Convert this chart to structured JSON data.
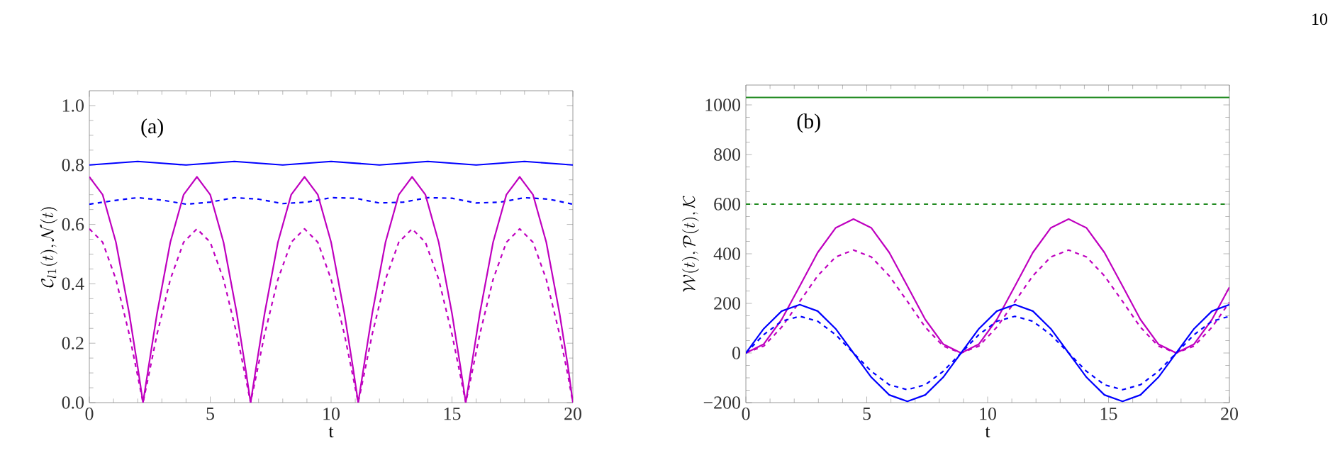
{
  "chart_data": [
    {
      "type": "line",
      "xlabel": "t",
      "ylabel": "\\mathcal{C}_{l1}(t),\\mathcal{N}(t)",
      "annotations": [
        "(a)"
      ],
      "xlim": [
        0,
        20
      ],
      "ylim": [
        0,
        1.05
      ],
      "xticks": [
        0,
        5,
        10,
        15,
        20
      ],
      "yticks": [
        {
          "value": 0,
          "label": "0.0"
        },
        0.2,
        0.4,
        0.6,
        0.8,
        {
          "value": 1,
          "label": "1.0"
        }
      ],
      "marker": "none",
      "grid": false,
      "series": [
        {
          "color": "#0000ff",
          "line_style": "solid",
          "x": [
            0,
            1,
            2,
            3,
            4,
            5,
            6,
            7,
            8,
            9,
            10,
            11,
            12,
            13,
            14,
            15,
            16,
            17,
            18,
            19,
            20
          ],
          "values": [
            0.8,
            0.806,
            0.812,
            0.806,
            0.8,
            0.806,
            0.812,
            0.806,
            0.8,
            0.806,
            0.812,
            0.806,
            0.8,
            0.806,
            0.812,
            0.806,
            0.8,
            0.806,
            0.812,
            0.806,
            0.8
          ]
        },
        {
          "color": "#0000ff",
          "line_style": "dashed",
          "x": [
            0,
            1,
            2,
            3,
            4,
            5,
            6,
            7,
            8,
            9,
            10,
            11,
            12,
            13,
            14,
            15,
            16,
            17,
            18,
            19,
            20
          ],
          "values": [
            0.668,
            0.68,
            0.69,
            0.682,
            0.668,
            0.675,
            0.69,
            0.685,
            0.67,
            0.675,
            0.69,
            0.688,
            0.672,
            0.675,
            0.69,
            0.688,
            0.672,
            0.675,
            0.69,
            0.685,
            0.668
          ]
        },
        {
          "color": "#bf00bf",
          "line_style": "solid",
          "x": [
            0,
            0.55,
            1.1,
            1.65,
            2.0,
            2.22,
            2.45,
            2.8,
            3.35,
            3.9,
            4.45,
            5.0,
            5.55,
            6.1,
            6.45,
            6.67,
            6.9,
            7.25,
            7.8,
            8.35,
            8.9,
            9.45,
            10.0,
            10.55,
            10.9,
            11.12,
            11.35,
            11.7,
            12.25,
            12.8,
            13.35,
            13.9,
            14.45,
            15.0,
            15.35,
            15.57,
            15.8,
            16.15,
            16.7,
            17.25,
            17.8,
            18.35,
            18.9,
            19.45,
            19.8,
            20.0
          ],
          "values": [
            0.76,
            0.7,
            0.54,
            0.3,
            0.12,
            0,
            0.12,
            0.3,
            0.54,
            0.7,
            0.76,
            0.7,
            0.54,
            0.3,
            0.12,
            0,
            0.12,
            0.3,
            0.54,
            0.7,
            0.76,
            0.7,
            0.54,
            0.3,
            0.12,
            0,
            0.12,
            0.3,
            0.54,
            0.7,
            0.76,
            0.7,
            0.54,
            0.3,
            0.12,
            0,
            0.12,
            0.3,
            0.54,
            0.7,
            0.76,
            0.7,
            0.54,
            0.3,
            0.12,
            0
          ]
        },
        {
          "color": "#bf00bf",
          "line_style": "dashed",
          "x": [
            0,
            0.55,
            1.1,
            1.65,
            2.0,
            2.22,
            2.45,
            2.8,
            3.35,
            3.9,
            4.45,
            5.0,
            5.55,
            6.1,
            6.45,
            6.67,
            6.9,
            7.25,
            7.8,
            8.35,
            8.9,
            9.45,
            10.0,
            10.55,
            10.9,
            11.12,
            11.35,
            11.7,
            12.25,
            12.8,
            13.35,
            13.9,
            14.45,
            15.0,
            15.35,
            15.57,
            15.8,
            16.15,
            16.7,
            17.25,
            17.8,
            18.35,
            18.9,
            19.45,
            19.8,
            20.0
          ],
          "values": [
            0.585,
            0.54,
            0.415,
            0.23,
            0.09,
            0,
            0.09,
            0.23,
            0.415,
            0.54,
            0.585,
            0.54,
            0.415,
            0.23,
            0.09,
            0,
            0.09,
            0.23,
            0.415,
            0.54,
            0.585,
            0.54,
            0.415,
            0.23,
            0.09,
            0,
            0.09,
            0.23,
            0.415,
            0.54,
            0.585,
            0.54,
            0.415,
            0.23,
            0.09,
            0,
            0.09,
            0.23,
            0.415,
            0.54,
            0.585,
            0.54,
            0.415,
            0.23,
            0.09,
            0
          ]
        }
      ]
    },
    {
      "type": "line",
      "xlabel": "t",
      "ylabel": "\\mathcal{W}(t),\\mathcal{P}(t),\\mathcal{K}",
      "annotations": [
        "(b)",
        "10"
      ],
      "xlim": [
        0,
        20
      ],
      "ylim": [
        -200,
        1080
      ],
      "xticks": [
        0,
        5,
        10,
        15,
        20
      ],
      "yticks": [
        {
          "value": -200,
          "label": "−200"
        },
        0,
        200,
        400,
        600,
        800,
        1000
      ],
      "marker": "none",
      "grid": false,
      "series": [
        {
          "color": "#228b22",
          "line_style": "solid",
          "x": [
            0,
            20
          ],
          "values": [
            1030,
            1030
          ]
        },
        {
          "color": "#228b22",
          "line_style": "dashed",
          "x": [
            0,
            20
          ],
          "values": [
            600,
            600
          ]
        },
        {
          "color": "#bf00bf",
          "line_style": "solid",
          "x": [
            0,
            0.74,
            1.48,
            2.23,
            2.97,
            3.71,
            4.45,
            5.19,
            5.93,
            6.68,
            7.42,
            8.16,
            8.9,
            9.64,
            10.38,
            11.13,
            11.87,
            12.61,
            13.35,
            14.09,
            14.83,
            15.58,
            16.32,
            17.06,
            17.8,
            18.54,
            19.28,
            20
          ],
          "values": [
            0,
            36,
            135,
            270,
            405,
            504,
            540,
            504,
            405,
            270,
            135,
            36,
            0,
            36,
            135,
            270,
            405,
            504,
            540,
            504,
            405,
            270,
            135,
            36,
            0,
            36,
            135,
            265
          ]
        },
        {
          "color": "#bf00bf",
          "line_style": "dashed",
          "x": [
            0,
            0.74,
            1.48,
            2.23,
            2.97,
            3.71,
            4.45,
            5.19,
            5.93,
            6.68,
            7.42,
            8.16,
            8.9,
            9.64,
            10.38,
            11.13,
            11.87,
            12.61,
            13.35,
            14.09,
            14.83,
            15.58,
            16.32,
            17.06,
            17.8,
            18.54,
            19.28,
            20
          ],
          "values": [
            0,
            28,
            104,
            208,
            311,
            387,
            415,
            387,
            311,
            208,
            104,
            28,
            0,
            28,
            104,
            208,
            311,
            387,
            415,
            387,
            311,
            208,
            104,
            28,
            0,
            28,
            104,
            204
          ]
        },
        {
          "color": "#0000ff",
          "line_style": "solid",
          "x": [
            0,
            0.74,
            1.48,
            2.23,
            2.97,
            3.71,
            4.45,
            5.19,
            5.93,
            6.68,
            7.42,
            8.16,
            8.9,
            9.64,
            10.38,
            11.13,
            11.87,
            12.61,
            13.35,
            14.09,
            14.83,
            15.58,
            16.32,
            17.06,
            17.8,
            18.54,
            19.28,
            20
          ],
          "values": [
            0,
            98,
            169,
            195,
            169,
            98,
            0,
            -98,
            -169,
            -195,
            -169,
            -98,
            0,
            98,
            169,
            195,
            169,
            98,
            0,
            -98,
            -169,
            -195,
            -169,
            -98,
            0,
            98,
            169,
            195
          ]
        },
        {
          "color": "#0000ff",
          "line_style": "dashed",
          "x": [
            0,
            0.74,
            1.48,
            2.23,
            2.97,
            3.71,
            4.45,
            5.19,
            5.93,
            6.68,
            7.42,
            8.16,
            8.9,
            9.64,
            10.38,
            11.13,
            11.87,
            12.61,
            13.35,
            14.09,
            14.83,
            15.58,
            16.32,
            17.06,
            17.8,
            18.54,
            19.28,
            20
          ],
          "values": [
            0,
            74,
            128,
            148,
            128,
            74,
            0,
            -74,
            -128,
            -148,
            -128,
            -74,
            0,
            74,
            128,
            148,
            128,
            74,
            0,
            -74,
            -128,
            -148,
            -128,
            -74,
            0,
            74,
            128,
            148
          ]
        }
      ]
    }
  ]
}
